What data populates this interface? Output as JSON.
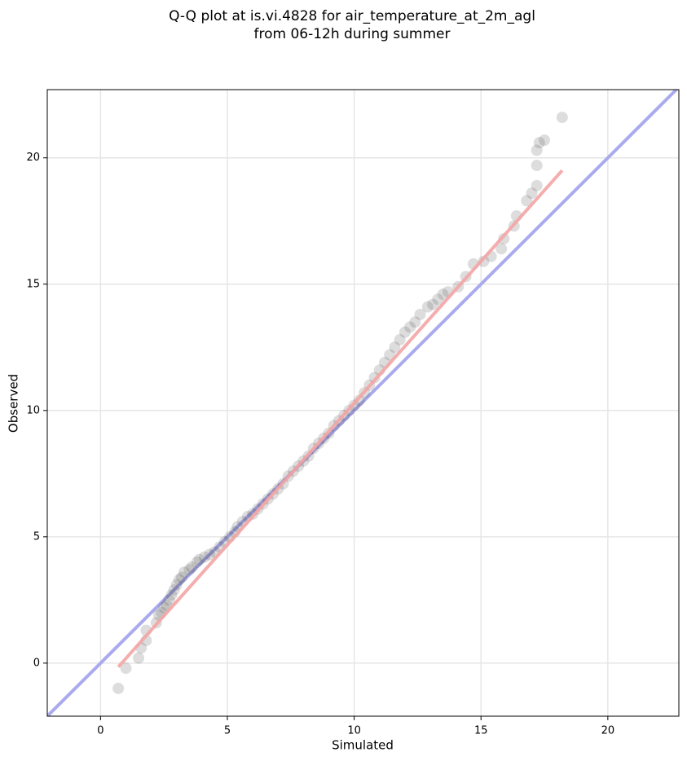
{
  "chart_data": {
    "type": "scatter",
    "title": [
      "Q-Q plot at is.vi.4828 for air_temperature_at_2m_agl",
      "from 06-12h during summer"
    ],
    "x_label": "Simulated",
    "y_label": "Observed",
    "xlim": [
      -2.1,
      22.8
    ],
    "ylim": [
      -2.1,
      22.7
    ],
    "xticks": [
      0,
      5,
      10,
      15,
      20
    ],
    "yticks": [
      0,
      5,
      10,
      15,
      20
    ],
    "grid": true,
    "point_color": "#444444",
    "point_opacity": 0.18,
    "x": [
      0.7,
      1.0,
      1.5,
      1.6,
      1.8,
      1.8,
      2.2,
      2.3,
      2.4,
      2.5,
      2.6,
      2.7,
      2.8,
      2.9,
      3.0,
      3.1,
      3.2,
      3.3,
      3.5,
      3.6,
      3.8,
      3.9,
      4.1,
      4.3,
      4.5,
      4.7,
      4.9,
      5.1,
      5.3,
      5.4,
      5.6,
      5.8,
      6.0,
      6.2,
      6.4,
      6.6,
      6.8,
      7.0,
      7.2,
      7.4,
      7.6,
      7.8,
      8.0,
      8.2,
      8.4,
      8.6,
      8.8,
      9.0,
      9.2,
      9.4,
      9.6,
      9.8,
      10.0,
      10.2,
      10.4,
      10.6,
      10.8,
      11.0,
      11.2,
      11.4,
      11.6,
      11.8,
      12.0,
      12.2,
      12.4,
      12.6,
      12.9,
      13.1,
      13.3,
      13.5,
      13.7,
      14.1,
      14.4,
      14.7,
      15.1,
      15.4,
      15.8,
      15.9,
      16.3,
      16.4,
      16.8,
      17.0,
      17.2,
      17.2,
      17.2,
      17.3,
      17.5,
      18.2
    ],
    "y": [
      -1.0,
      -0.2,
      0.2,
      0.6,
      0.9,
      1.3,
      1.6,
      1.9,
      2.0,
      2.2,
      2.3,
      2.5,
      2.7,
      2.9,
      3.1,
      3.3,
      3.4,
      3.6,
      3.7,
      3.8,
      4.0,
      4.1,
      4.2,
      4.3,
      4.4,
      4.6,
      4.8,
      5.0,
      5.2,
      5.4,
      5.6,
      5.8,
      5.9,
      6.1,
      6.3,
      6.5,
      6.7,
      6.9,
      7.1,
      7.4,
      7.6,
      7.8,
      8.0,
      8.2,
      8.5,
      8.7,
      8.9,
      9.1,
      9.4,
      9.6,
      9.8,
      10.0,
      10.2,
      10.4,
      10.7,
      11.0,
      11.3,
      11.6,
      11.9,
      12.2,
      12.5,
      12.8,
      13.1,
      13.3,
      13.5,
      13.8,
      14.1,
      14.2,
      14.4,
      14.6,
      14.7,
      14.9,
      15.3,
      15.8,
      15.9,
      16.1,
      16.4,
      16.8,
      17.3,
      17.7,
      18.3,
      18.6,
      18.9,
      19.7,
      20.3,
      20.6,
      20.7,
      21.6
    ],
    "identity_line": {
      "color": "#aaaaee"
    },
    "fit_line": {
      "color": "#f4a4a4",
      "x": [
        0.7,
        18.2
      ],
      "y": [
        -0.15,
        19.5
      ]
    }
  }
}
